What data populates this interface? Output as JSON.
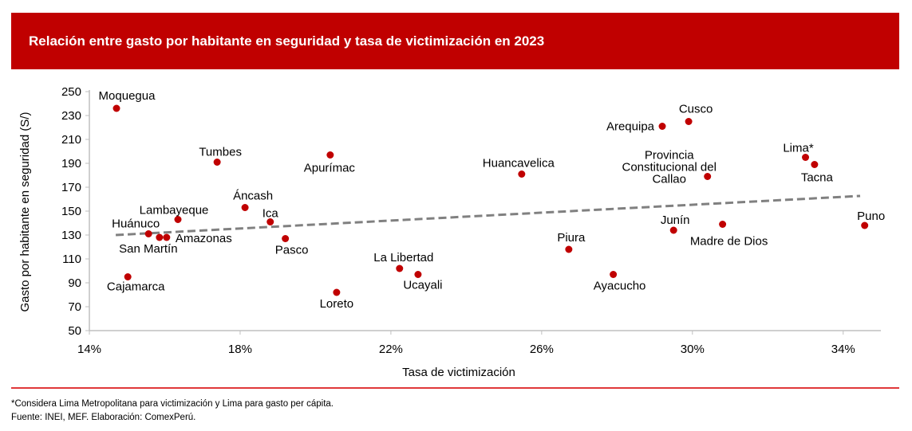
{
  "header": {
    "title": "Relación entre gasto por habitante en seguridad y tasa de victimización en 2023"
  },
  "chart_data": {
    "type": "scatter",
    "title": "Relación entre gasto por habitante en seguridad y tasa de victimización en 2023",
    "xlabel": "Tasa de victimización",
    "ylabel": "Gasto por habitante en seguridad (S/)",
    "xlim": [
      14,
      35
    ],
    "ylim": [
      50,
      250
    ],
    "x_ticks": [
      14,
      18,
      22,
      26,
      30,
      34
    ],
    "x_tick_labels": [
      "14%",
      "18%",
      "22%",
      "26%",
      "30%",
      "34%"
    ],
    "y_ticks": [
      50,
      70,
      90,
      110,
      130,
      150,
      170,
      190,
      210,
      230,
      250
    ],
    "y_tick_labels": [
      "50",
      "70",
      "90",
      "110",
      "130",
      "150",
      "170",
      "190",
      "210",
      "230",
      "250"
    ],
    "grid": false,
    "point_color": "#c00000",
    "trendline": {
      "style": "dashed",
      "color": "#808080",
      "x": [
        14.7,
        34.45
      ],
      "y": [
        130,
        162.7
      ]
    },
    "points": [
      {
        "name": "Moquegua",
        "x": 14.72,
        "y": 236
      },
      {
        "name": "Tumbes",
        "x": 17.39,
        "y": 191
      },
      {
        "name": "Apurímac",
        "x": 20.39,
        "y": 197
      },
      {
        "name": "Áncash",
        "x": 18.13,
        "y": 153
      },
      {
        "name": "Lambayeque",
        "x": 16.35,
        "y": 143
      },
      {
        "name": "Ica",
        "x": 18.8,
        "y": 141
      },
      {
        "name": "Huánuco",
        "x": 15.57,
        "y": 131
      },
      {
        "name": "San Martín",
        "x": 15.86,
        "y": 128
      },
      {
        "name": "Amazonas",
        "x": 16.05,
        "y": 128
      },
      {
        "name": "Pasco",
        "x": 19.2,
        "y": 127
      },
      {
        "name": "Cajamarca",
        "x": 15.02,
        "y": 95
      },
      {
        "name": "Loreto",
        "x": 20.56,
        "y": 82
      },
      {
        "name": "La Libertad",
        "x": 22.23,
        "y": 102
      },
      {
        "name": "Ucayali",
        "x": 22.72,
        "y": 97
      },
      {
        "name": "Huancavelica",
        "x": 25.47,
        "y": 181
      },
      {
        "name": "Piura",
        "x": 26.72,
        "y": 118
      },
      {
        "name": "Ayacucho",
        "x": 27.9,
        "y": 97
      },
      {
        "name": "Arequipa",
        "x": 29.2,
        "y": 221
      },
      {
        "name": "Cusco",
        "x": 29.9,
        "y": 225
      },
      {
        "name": "Provincia Constitucional del Callao",
        "x": 30.4,
        "y": 179
      },
      {
        "name": "Lima*",
        "x": 33.0,
        "y": 195
      },
      {
        "name": "Tacna",
        "x": 33.24,
        "y": 189
      },
      {
        "name": "Junín",
        "x": 29.5,
        "y": 134
      },
      {
        "name": "Madre de Dios",
        "x": 30.8,
        "y": 139
      },
      {
        "name": "Puno",
        "x": 34.57,
        "y": 138
      }
    ]
  },
  "footer": {
    "note": "*Considera Lima Metropolitana para victimización y Lima para gasto per cápita.",
    "source": "Fuente: INEI, MEF. Elaboración: ComexPerú."
  }
}
